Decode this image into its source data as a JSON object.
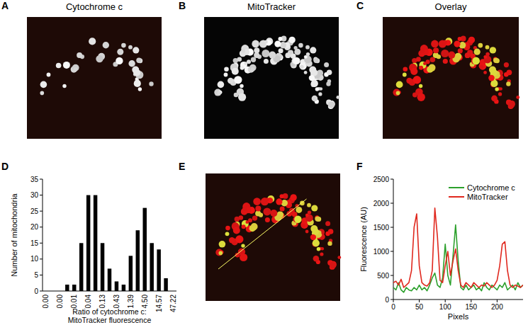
{
  "panels": [
    {
      "label": "A",
      "title": "Cytochrome c"
    },
    {
      "label": "B",
      "title": "MitoTracker"
    },
    {
      "label": "C",
      "title": "Overlay"
    },
    {
      "label": "D"
    },
    {
      "label": "E"
    },
    {
      "label": "F"
    }
  ],
  "chart_data": [
    {
      "type": "bar",
      "y_label": "Number of mitochondria",
      "x_label": [
        "Ratio of cytochrome c:",
        "MitoTracker fluorescence"
      ],
      "categories": [
        "0.00",
        null,
        "0.00",
        null,
        "0.01",
        null,
        "0.04",
        null,
        "0.13",
        null,
        "0.43",
        null,
        "1.39",
        null,
        "4.50",
        null,
        "14.57",
        null,
        "47.22"
      ],
      "values": [
        0,
        0,
        0,
        2,
        2,
        15,
        30,
        30,
        15,
        7,
        3,
        2,
        11,
        19,
        26,
        15,
        13,
        4,
        0
      ],
      "color": "#000000",
      "ylim": [
        0,
        35
      ],
      "yticks": [
        0,
        5,
        10,
        15,
        20,
        25,
        30,
        35
      ],
      "grid": false
    },
    {
      "type": "line",
      "y_label": "Fluorescence (AU)",
      "x_label": "Pixels",
      "x": [
        0,
        5,
        10,
        15,
        20,
        25,
        30,
        35,
        40,
        45,
        50,
        55,
        60,
        65,
        70,
        75,
        80,
        85,
        90,
        95,
        100,
        105,
        110,
        115,
        120,
        125,
        130,
        135,
        140,
        145,
        150,
        155,
        160,
        165,
        170,
        175,
        180,
        185,
        190,
        195,
        200,
        205,
        210,
        215,
        220,
        225,
        230,
        235,
        240,
        245,
        250
      ],
      "series": [
        {
          "name": "Cytochrome c",
          "color": "#2ca02c",
          "values": [
            250,
            200,
            350,
            200,
            150,
            250,
            200,
            180,
            250,
            200,
            300,
            200,
            250,
            180,
            300,
            450,
            550,
            300,
            250,
            450,
            1150,
            500,
            300,
            900,
            1550,
            800,
            250,
            200,
            300,
            200,
            250,
            300,
            200,
            250,
            180,
            350,
            250,
            200,
            300,
            250,
            200,
            300,
            250,
            350,
            200,
            250,
            300,
            200,
            350,
            250,
            300
          ]
        },
        {
          "name": "MitoTracker",
          "color": "#e0281e",
          "values": [
            350,
            380,
            300,
            420,
            250,
            300,
            350,
            600,
            1500,
            1780,
            700,
            350,
            300,
            280,
            350,
            600,
            1900,
            1300,
            400,
            350,
            700,
            1000,
            500,
            800,
            1050,
            600,
            300,
            250,
            350,
            300,
            250,
            350,
            300,
            250,
            300,
            280,
            350,
            300,
            250,
            300,
            400,
            700,
            1150,
            1200,
            600,
            300,
            250,
            300,
            280,
            250,
            300
          ]
        }
      ],
      "xlim": [
        0,
        250
      ],
      "xticks": [
        0,
        50,
        100,
        150,
        200
      ],
      "ylim": [
        0,
        2500
      ],
      "yticks": [
        0,
        500,
        1000,
        1500,
        2000,
        2500
      ],
      "legend": "top-right",
      "grid": false
    }
  ]
}
